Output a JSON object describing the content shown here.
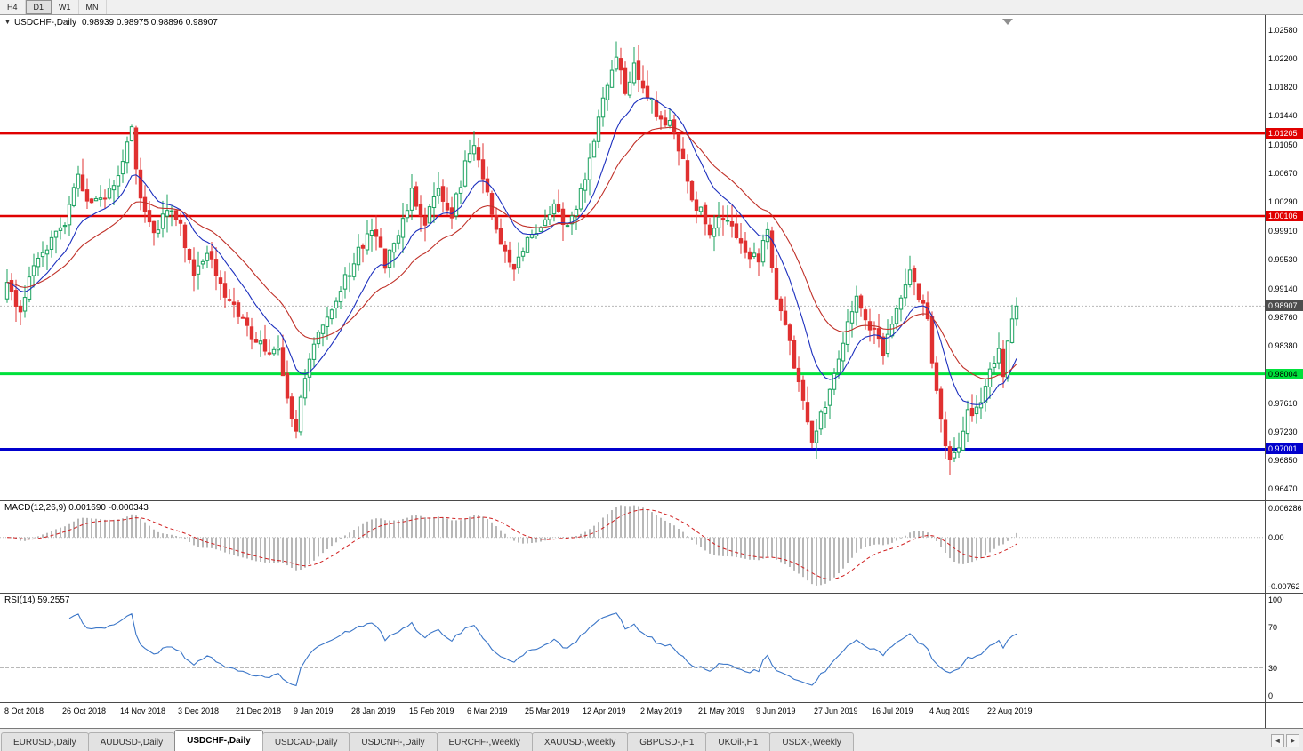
{
  "icons": {
    "symbol_dropdown": "▼",
    "tab_prev": "◄",
    "tab_next": "►"
  },
  "toolbar": {
    "timeframes": [
      {
        "label": "H4",
        "active": false
      },
      {
        "label": "D1",
        "active": true
      },
      {
        "label": "W1",
        "active": false
      },
      {
        "label": "MN",
        "active": false
      }
    ]
  },
  "chart": {
    "title_symbol": "USDCHF-,Daily",
    "ohlc_text": "0.98939 0.98975 0.98896 0.98907",
    "candle_up_color": "#19a15e",
    "candle_down_color": "#e03131",
    "bid_line_color": "#b8b8b8",
    "price_axis_labels": [
      "1.02580",
      "1.02200",
      "1.01820",
      "1.01440",
      "1.01050",
      "1.00670",
      "1.00290",
      "0.99910",
      "0.99530",
      "0.99140",
      "0.98760",
      "0.98380",
      "0.97610",
      "0.97230",
      "0.96850",
      "0.96470"
    ],
    "price_tags": [
      {
        "text": "1.01205",
        "bg": "#e00000",
        "fg": "#ffffff"
      },
      {
        "text": "1.00106",
        "bg": "#e00000",
        "fg": "#ffffff"
      },
      {
        "text": "0.98907",
        "bg": "#4d4d4d",
        "fg": "#ffffff"
      },
      {
        "text": "0.98004",
        "bg": "#00e13b",
        "fg": "#000000"
      },
      {
        "text": "0.97001",
        "bg": "#0000cd",
        "fg": "#ffffff"
      }
    ]
  },
  "macd_panel": {
    "title": "MACD(12,26,9) 0.001690 -0.000343",
    "axis_labels": [
      "0.006286",
      "0.00",
      "-0.00762"
    ],
    "histogram_color": "#999999",
    "signal_color": "#d02020"
  },
  "rsi_panel": {
    "title": "RSI(14) 59.2557",
    "axis_labels": [
      "100",
      "70",
      "30",
      "0"
    ],
    "line_color": "#3b76c8",
    "level_color": "#b8b8b8"
  },
  "tabs": {
    "active_index": 2,
    "items": [
      "EURUSD-,Daily",
      "AUDUSD-,Daily",
      "USDCHF-,Daily",
      "USDCAD-,Daily",
      "USDCNH-,Daily",
      "EURCHF-,Weekly",
      "XAUUSD-,Weekly",
      "GBPUSD-,H1",
      "UKOil-,H1",
      "USDX-,Weekly"
    ]
  },
  "chart_data": {
    "type": "candlestick",
    "symbol": "USDCHF",
    "timeframe": "Daily",
    "title": "USDCHF-,Daily",
    "visible_ohlc": {
      "open": 0.98939,
      "high": 0.98975,
      "low": 0.98896,
      "close": 0.98907
    },
    "current_price": 0.98907,
    "y_axis_range": [
      0.9632,
      1.0278
    ],
    "candle_count": 228,
    "candles_per_date_label": 13,
    "x_tick_labels": [
      "8 Oct 2018",
      "26 Oct 2018",
      "14 Nov 2018",
      "3 Dec 2018",
      "21 Dec 2018",
      "9 Jan 2019",
      "28 Jan 2019",
      "15 Feb 2019",
      "6 Mar 2019",
      "25 Mar 2019",
      "12 Apr 2019",
      "2 May 2019",
      "21 May 2019",
      "9 Jun 2019",
      "27 Jun 2019",
      "16 Jul 2019",
      "4 Aug 2019",
      "22 Aug 2019"
    ],
    "close_path_anchors": [
      [
        0,
        0.9915
      ],
      [
        3,
        0.9885
      ],
      [
        6,
        0.9945
      ],
      [
        10,
        0.9975
      ],
      [
        13,
        1.0005
      ],
      [
        16,
        1.0062
      ],
      [
        19,
        1.0022
      ],
      [
        22,
        1.0038
      ],
      [
        25,
        1.006
      ],
      [
        28,
        1.0122
      ],
      [
        30,
        1.003
      ],
      [
        33,
        0.9988
      ],
      [
        36,
        1.0022
      ],
      [
        39,
        0.9995
      ],
      [
        42,
        0.9932
      ],
      [
        45,
        0.9962
      ],
      [
        48,
        0.992
      ],
      [
        52,
        0.9882
      ],
      [
        55,
        0.9852
      ],
      [
        58,
        0.9832
      ],
      [
        61,
        0.9838
      ],
      [
        63,
        0.9762
      ],
      [
        65,
        0.9732
      ],
      [
        67,
        0.98
      ],
      [
        70,
        0.9862
      ],
      [
        74,
        0.9902
      ],
      [
        78,
        0.995
      ],
      [
        82,
        0.9995
      ],
      [
        85,
        0.9945
      ],
      [
        88,
        0.999
      ],
      [
        91,
        1.004
      ],
      [
        94,
        1.0002
      ],
      [
        97,
        1.0046
      ],
      [
        100,
        1.0012
      ],
      [
        103,
        1.0078
      ],
      [
        105,
        1.0105
      ],
      [
        108,
        1.004
      ],
      [
        111,
        0.9972
      ],
      [
        114,
        0.9936
      ],
      [
        117,
        0.9975
      ],
      [
        120,
        0.9992
      ],
      [
        123,
        1.0026
      ],
      [
        126,
        0.9996
      ],
      [
        129,
        1.0042
      ],
      [
        132,
        1.011
      ],
      [
        135,
        1.0185
      ],
      [
        137,
        1.0225
      ],
      [
        139,
        1.0178
      ],
      [
        141,
        1.0208
      ],
      [
        143,
        1.0185
      ],
      [
        146,
        1.0146
      ],
      [
        149,
        1.0136
      ],
      [
        152,
        1.0086
      ],
      [
        154,
        1.0036
      ],
      [
        156,
        1.0016
      ],
      [
        158,
        0.9986
      ],
      [
        161,
        1.0012
      ],
      [
        164,
        0.9986
      ],
      [
        167,
        0.9952
      ],
      [
        169,
        0.9956
      ],
      [
        171,
        0.999
      ],
      [
        173,
        0.9902
      ],
      [
        176,
        0.9842
      ],
      [
        179,
        0.9762
      ],
      [
        181,
        0.9716
      ],
      [
        183,
        0.9742
      ],
      [
        186,
        0.9802
      ],
      [
        189,
        0.9872
      ],
      [
        191,
        0.9906
      ],
      [
        193,
        0.9872
      ],
      [
        195,
        0.9862
      ],
      [
        197,
        0.9832
      ],
      [
        199,
        0.9866
      ],
      [
        201,
        0.9906
      ],
      [
        203,
        0.9936
      ],
      [
        205,
        0.9906
      ],
      [
        207,
        0.9872
      ],
      [
        208,
        0.9822
      ],
      [
        210,
        0.9736
      ],
      [
        212,
        0.968
      ],
      [
        214,
        0.9702
      ],
      [
        216,
        0.9746
      ],
      [
        218,
        0.9757
      ],
      [
        220,
        0.9782
      ],
      [
        221,
        0.9802
      ],
      [
        223,
        0.9832
      ],
      [
        224,
        0.9792
      ],
      [
        225,
        0.9842
      ],
      [
        226,
        0.9872
      ],
      [
        227,
        0.9891
      ]
    ],
    "horizontal_lines": [
      {
        "price": 1.01205,
        "color": "#e00000",
        "width": 2.4
      },
      {
        "price": 1.00106,
        "color": "#e00000",
        "width": 2.4
      },
      {
        "price": 0.98004,
        "color": "#00e13b",
        "width": 3
      },
      {
        "price": 0.97001,
        "color": "#0000cd",
        "width": 3
      }
    ],
    "moving_averages": [
      {
        "type": "EMA",
        "period": 12,
        "color": "#1c2fbe"
      },
      {
        "type": "EMA",
        "period": 26,
        "color": "#c03028"
      }
    ],
    "indicators": {
      "macd": {
        "fast": 12,
        "slow": 26,
        "signal": 9,
        "current_main": 0.00169,
        "current_signal": -0.000343,
        "y_axis": [
          0.006286,
          0.0,
          -0.00762
        ]
      },
      "rsi": {
        "period": 14,
        "current": 59.2557,
        "levels": [
          30,
          70
        ],
        "y_axis": [
          100,
          70,
          30,
          0
        ]
      }
    }
  }
}
